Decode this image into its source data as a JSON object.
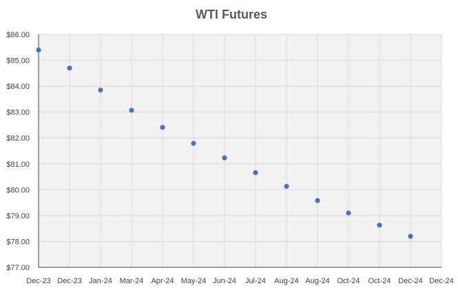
{
  "chart_data": {
    "type": "scatter",
    "title": "WTI Futures",
    "xlabel": "",
    "ylabel": "",
    "x_tick_labels": [
      "Dec-23",
      "Dec-23",
      "Jan-24",
      "Mar-24",
      "Apr-24",
      "May-24",
      "Jun-24",
      "Jul-24",
      "Aug-24",
      "Aug-24",
      "Oct-24",
      "Oct-24",
      "Dec-24",
      "Dec-24"
    ],
    "y_tick_labels": [
      "$77.00",
      "$78.00",
      "$79.00",
      "$80.00",
      "$81.00",
      "$82.00",
      "$83.00",
      "$84.00",
      "$85.00",
      "$86.00"
    ],
    "ylim": [
      77,
      86
    ],
    "grid": true,
    "legend": "none",
    "colors": {
      "marker": "#4472c4",
      "plot_background": "#f2f2f2",
      "gridline": "#d9d9d9"
    },
    "points": [
      {
        "x": 0,
        "y": 85.4
      },
      {
        "x": 1,
        "y": 84.7
      },
      {
        "x": 2,
        "y": 83.85
      },
      {
        "x": 3,
        "y": 83.07
      },
      {
        "x": 4,
        "y": 82.41
      },
      {
        "x": 5,
        "y": 81.79
      },
      {
        "x": 6,
        "y": 81.23
      },
      {
        "x": 7,
        "y": 80.66
      },
      {
        "x": 8,
        "y": 80.13
      },
      {
        "x": 9,
        "y": 79.58
      },
      {
        "x": 10,
        "y": 79.1
      },
      {
        "x": 11,
        "y": 78.63
      },
      {
        "x": 12,
        "y": 78.2
      }
    ]
  }
}
